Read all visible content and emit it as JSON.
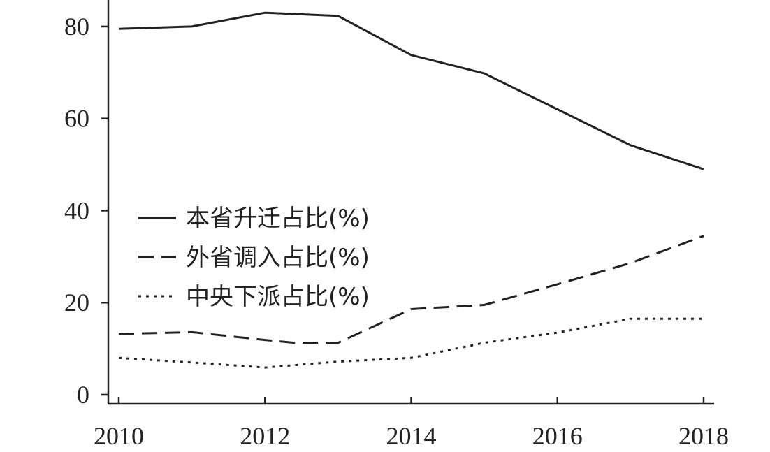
{
  "chart_data": {
    "type": "line",
    "x": [
      2010,
      2011,
      2012,
      2013,
      2014,
      2015,
      2016,
      2017,
      2018
    ],
    "xlim": [
      2010,
      2018
    ],
    "ylim": [
      0,
      85
    ],
    "xticks": [
      "2010",
      "2012",
      "2014",
      "2016",
      "2018"
    ],
    "yticks": [
      "0",
      "20",
      "40",
      "60",
      "80"
    ],
    "title": "",
    "xlabel": "",
    "ylabel": "",
    "grid": false,
    "legend_position": "center-left",
    "series": [
      {
        "name": "本省升迁占比(%)",
        "dash": "solid",
        "x": [
          2010,
          2011,
          2012,
          2013,
          2014,
          2015,
          2016,
          2017,
          2018
        ],
        "values": [
          79.5,
          80,
          83,
          82.3,
          73.8,
          69.8,
          62,
          54.2,
          49
        ]
      },
      {
        "name": "外省调入占比(%)",
        "dash": "dashed",
        "x": [
          2010,
          2011,
          2012,
          2012.4,
          2013,
          2014,
          2015,
          2016,
          2017,
          2018
        ],
        "values": [
          13.2,
          13.6,
          11.9,
          11.3,
          11.3,
          18.6,
          19.5,
          24,
          28.6,
          34.5
        ]
      },
      {
        "name": "中央下派占比(%)",
        "dash": "dotted",
        "x": [
          2010,
          2011,
          2012,
          2013,
          2014,
          2015,
          2016,
          2017,
          2018
        ],
        "values": [
          8,
          7,
          5.9,
          7.2,
          8,
          11.3,
          13.5,
          16.5,
          16.5
        ]
      }
    ]
  }
}
